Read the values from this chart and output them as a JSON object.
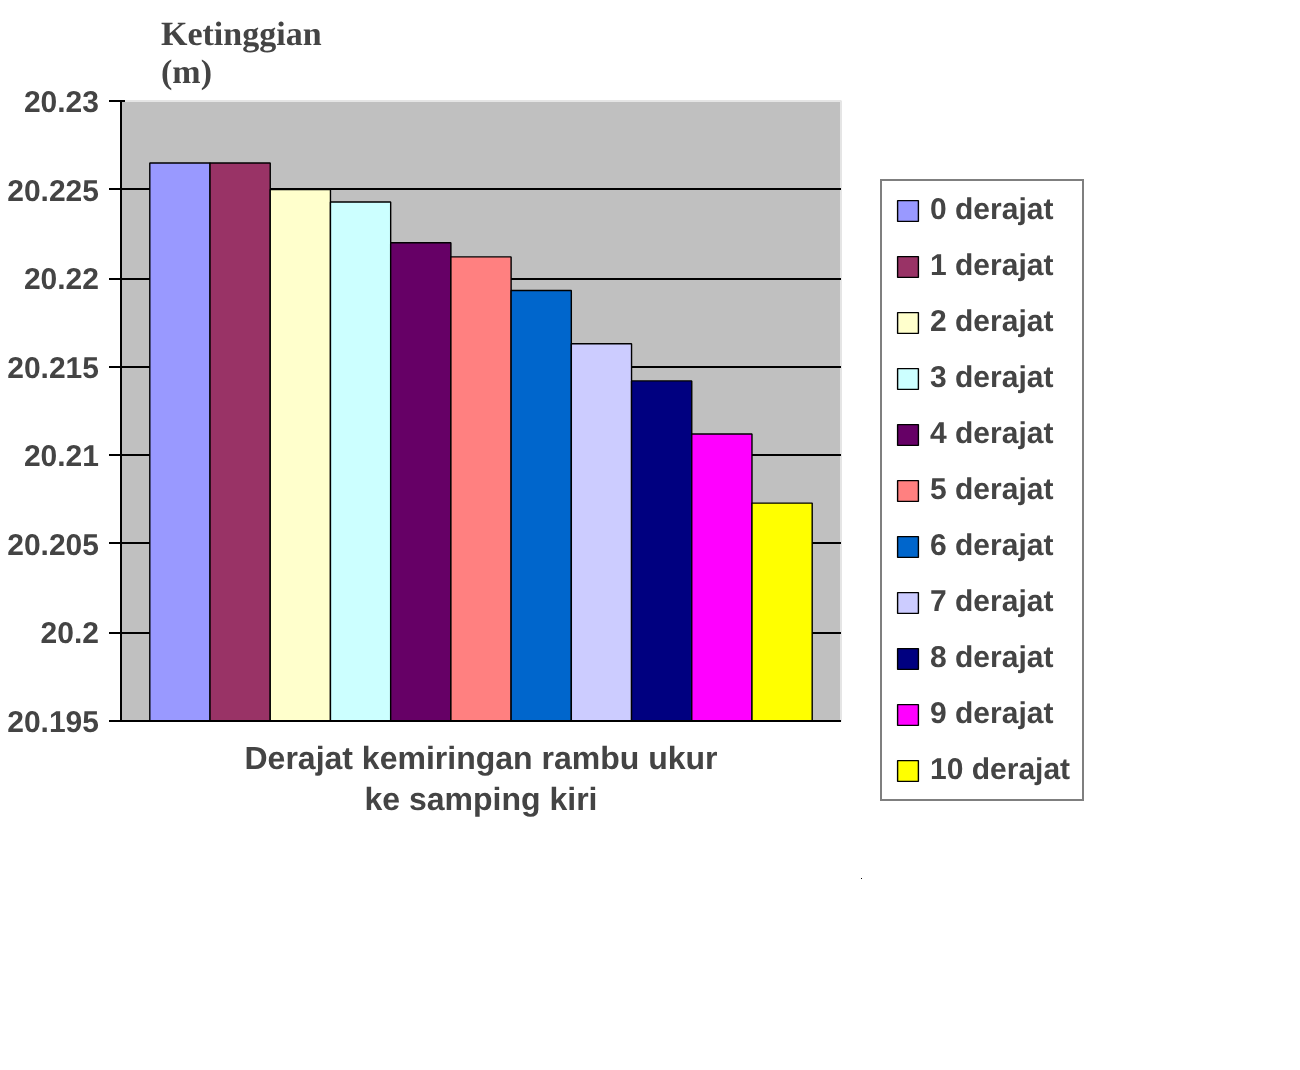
{
  "chart_data": {
    "type": "bar",
    "title": "Ketinggian\n(m)",
    "xlabel": "Derajat kemiringan rambu ukur\nke samping kiri",
    "categories": [
      null
    ],
    "series": [
      {
        "name": "0 derajat",
        "color": "#9999ff",
        "values": [
          20.2265
        ]
      },
      {
        "name": "1 derajat",
        "color": "#993366",
        "values": [
          20.2265
        ]
      },
      {
        "name": "2 derajat",
        "color": "#ffffcc",
        "values": [
          20.225
        ]
      },
      {
        "name": "3 derajat",
        "color": "#ccffff",
        "values": [
          20.2243
        ]
      },
      {
        "name": "4 derajat",
        "color": "#660066",
        "values": [
          20.222
        ]
      },
      {
        "name": "5 derajat",
        "color": "#ff8080",
        "values": [
          20.2212
        ]
      },
      {
        "name": "6 derajat",
        "color": "#0066cc",
        "values": [
          20.2193
        ]
      },
      {
        "name": "7 derajat",
        "color": "#ccccff",
        "values": [
          20.2163
        ]
      },
      {
        "name": "8 derajat",
        "color": "#000080",
        "values": [
          20.2142
        ]
      },
      {
        "name": "9 derajat",
        "color": "#ff00ff",
        "values": [
          20.2112
        ]
      },
      {
        "name": "10 derajat",
        "color": "#ffff00",
        "values": [
          20.2073
        ]
      }
    ],
    "ylim": [
      20.195,
      20.23
    ],
    "yticks": [
      {
        "value": 20.195,
        "label": "20.195"
      },
      {
        "value": 20.2,
        "label": "20.2"
      },
      {
        "value": 20.205,
        "label": "20.205"
      },
      {
        "value": 20.21,
        "label": "20.21"
      },
      {
        "value": 20.215,
        "label": "20.215"
      },
      {
        "value": 20.22,
        "label": "20.22"
      },
      {
        "value": 20.225,
        "label": "20.225"
      },
      {
        "value": 20.23,
        "label": "20.23"
      }
    ],
    "grid": "y",
    "legend": "right"
  }
}
